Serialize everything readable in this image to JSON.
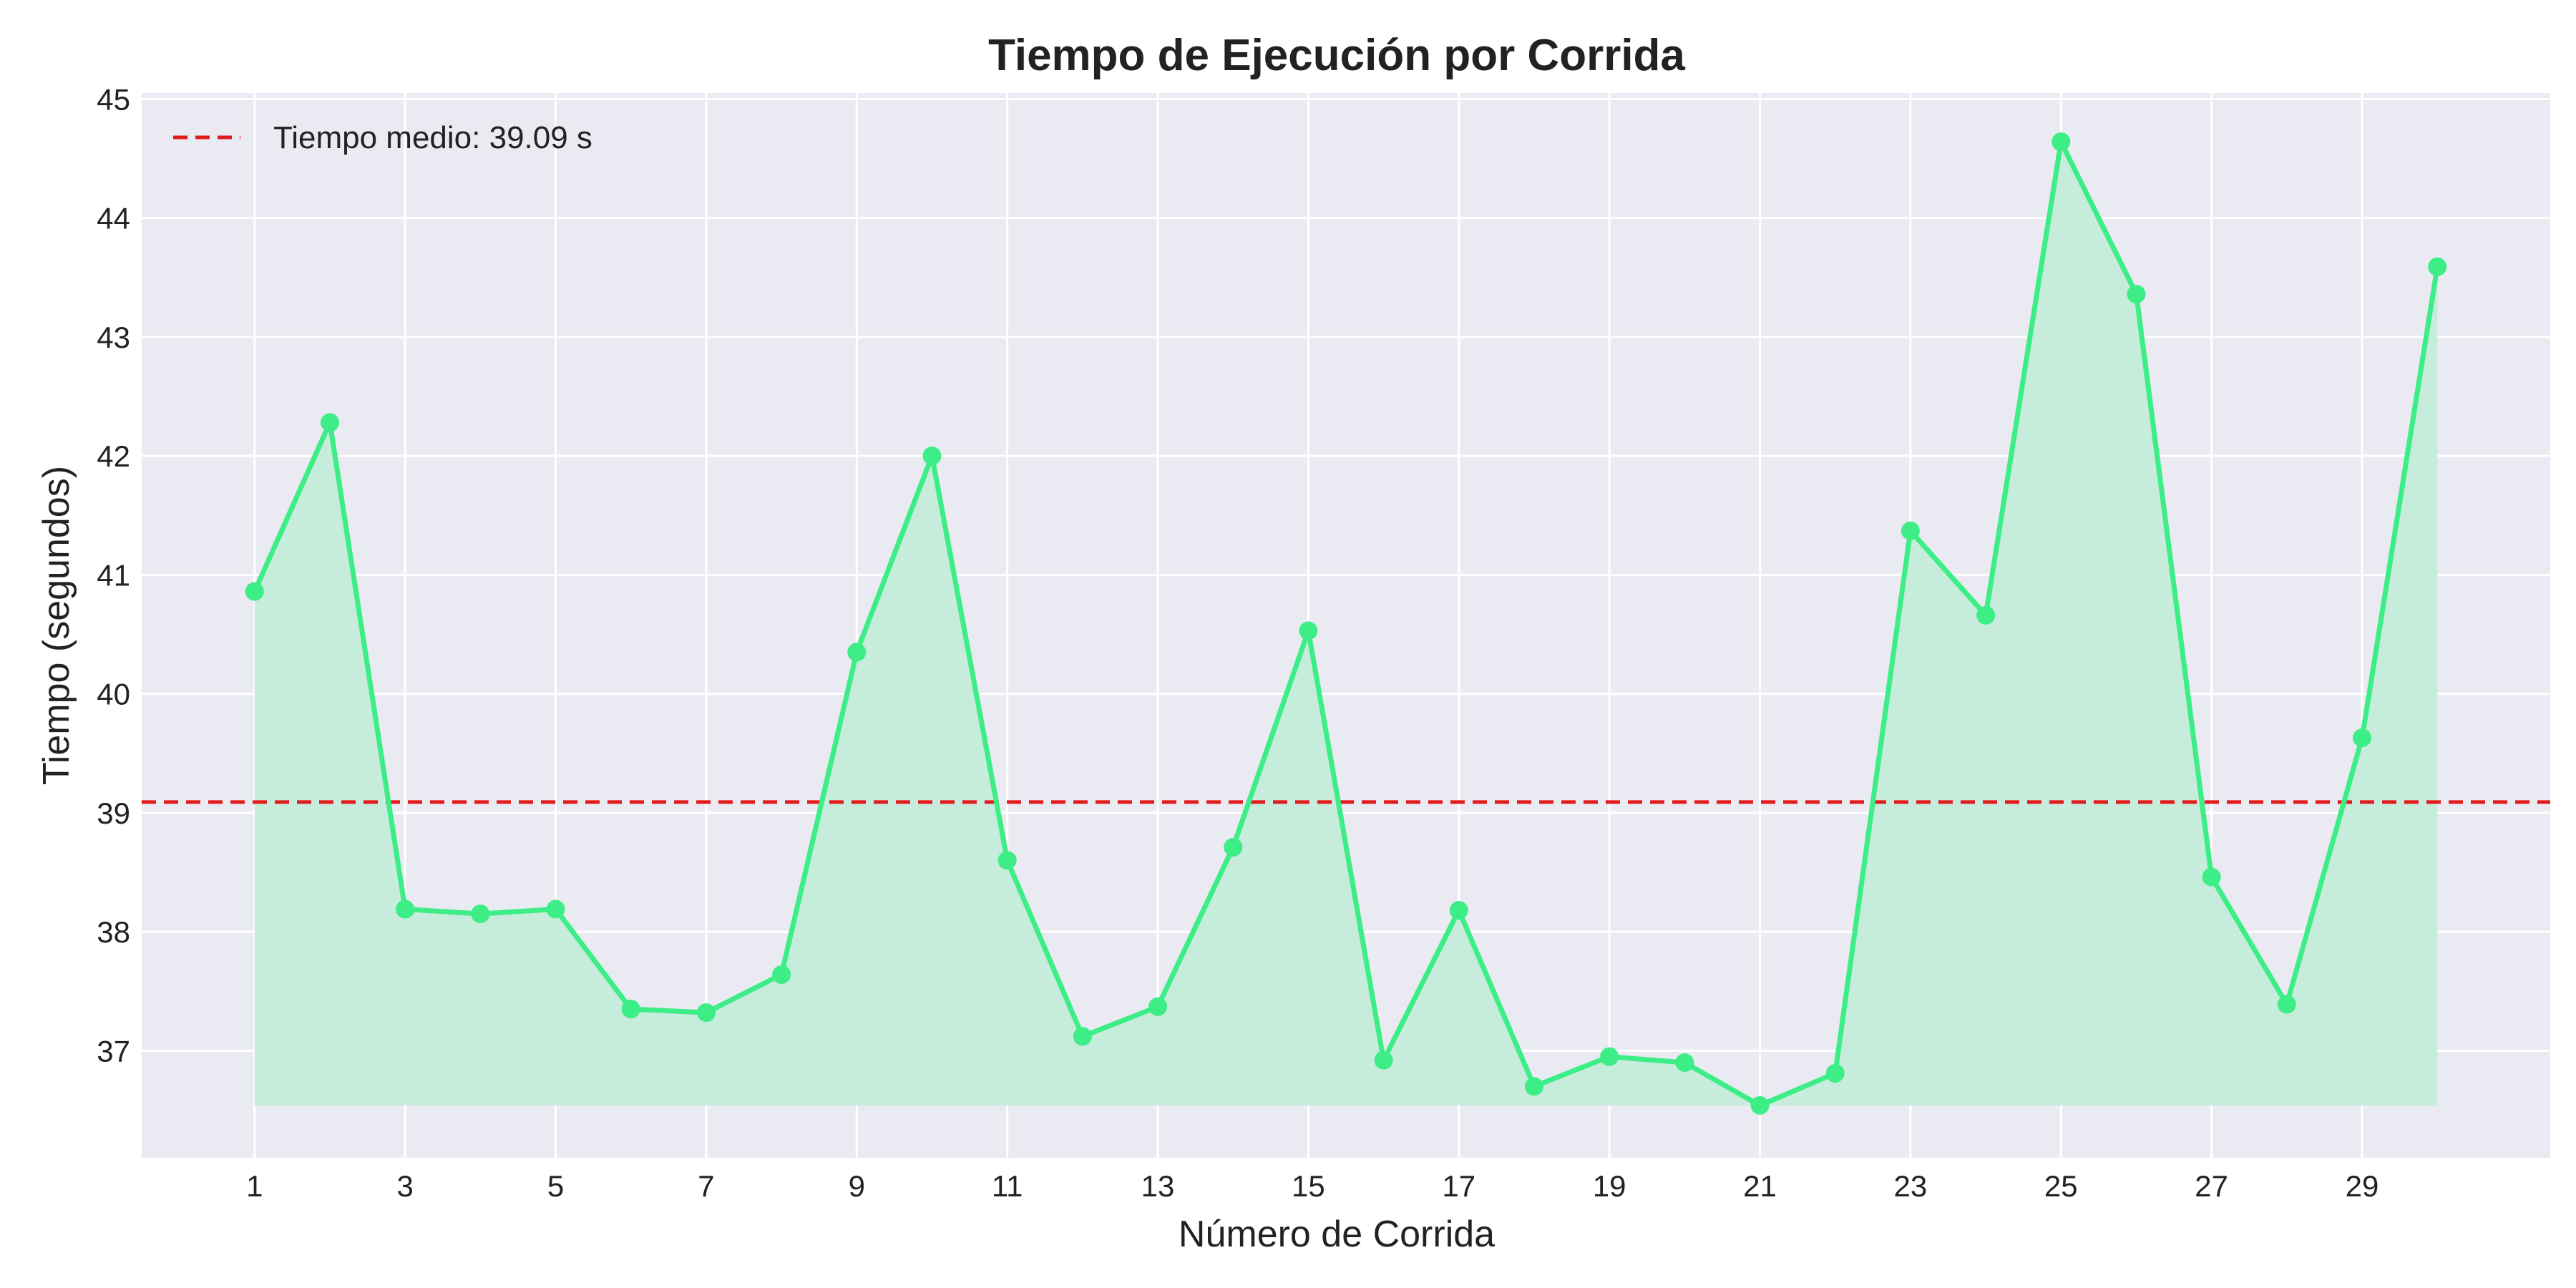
{
  "chart_data": {
    "type": "line",
    "title": "Tiempo de Ejecución por Corrida",
    "xlabel": "Número de Corrida",
    "ylabel": "Tiempo (segundos)",
    "x": [
      1,
      2,
      3,
      4,
      5,
      6,
      7,
      8,
      9,
      10,
      11,
      12,
      13,
      14,
      15,
      16,
      17,
      18,
      19,
      20,
      21,
      22,
      23,
      24,
      25,
      26,
      27,
      28,
      29,
      30
    ],
    "series": [
      {
        "name": "",
        "color": "#3ded86",
        "fill_color": "#c6ecdb",
        "values": [
          40.86,
          42.28,
          38.19,
          38.15,
          38.19,
          37.35,
          37.32,
          37.64,
          40.35,
          42.0,
          38.6,
          37.12,
          37.37,
          38.71,
          40.53,
          36.92,
          38.18,
          36.7,
          36.95,
          36.9,
          36.54,
          36.81,
          41.37,
          40.66,
          44.64,
          43.36,
          38.46,
          37.39,
          39.63,
          43.59
        ]
      }
    ],
    "mean_line": {
      "value": 39.09,
      "label": "Tiempo medio: 39.09 s",
      "color": "#e31a1c"
    },
    "xticks": [
      1,
      3,
      5,
      7,
      9,
      11,
      13,
      15,
      17,
      19,
      21,
      23,
      25,
      27,
      29
    ],
    "yticks": [
      37,
      38,
      39,
      40,
      41,
      42,
      43,
      44,
      45
    ],
    "xlim": [
      -0.5,
      31.5
    ],
    "ylim": [
      36.1,
      45.05
    ],
    "grid": true,
    "legend_position": "top-left",
    "background_color": "#eaeaf2"
  }
}
